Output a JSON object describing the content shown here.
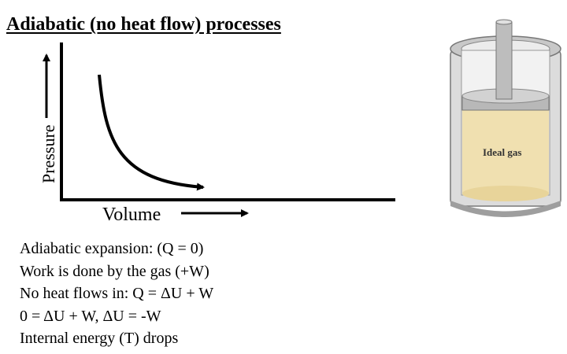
{
  "title": "Adiabatic (no heat flow) processes",
  "axes": {
    "y_label": "Pressure",
    "x_label": "Volume"
  },
  "cylinder": {
    "gas_label": "Ideal gas",
    "gas_color": "#f0e0b0"
  },
  "notes": [
    "Adiabatic expansion: (Q = 0)",
    "Work is done by the gas  (+W)",
    "No heat flows in: Q = ΔU + W",
    "0 = ΔU + W,  ΔU = -W",
    "Internal energy (T) drops"
  ]
}
